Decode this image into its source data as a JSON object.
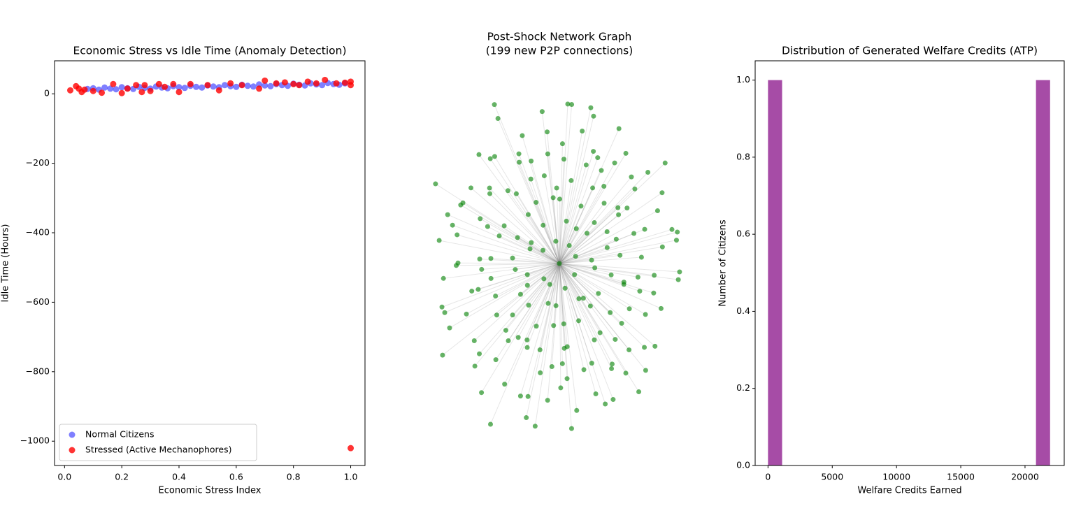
{
  "chart_data": [
    {
      "type": "scatter",
      "title": "Economic Stress vs Idle Time (Anomaly Detection)",
      "xlabel": "Economic Stress Index",
      "ylabel": "Idle Time (Hours)",
      "xlim": [
        -0.035,
        1.05
      ],
      "ylim": [
        -1070,
        95
      ],
      "xticks": [
        {
          "value": 0,
          "label": "0.0"
        },
        0.2,
        0.4,
        0.6,
        0.8,
        {
          "value": 1,
          "label": "1.0"
        }
      ],
      "yticks": [
        {
          "value": 0,
          "label": "0"
        },
        {
          "value": -200,
          "label": "−200"
        },
        {
          "value": -400,
          "label": "−400"
        },
        {
          "value": -600,
          "label": "−600"
        },
        {
          "value": -800,
          "label": "−800"
        },
        {
          "value": -1000,
          "label": "−1000"
        }
      ],
      "legend": "lower left",
      "grid": false,
      "series": [
        {
          "name": "Normal Citizens",
          "color": "blue",
          "alpha": 0.5,
          "x": [
            0.08,
            0.1,
            0.12,
            0.14,
            0.16,
            0.18,
            0.2,
            0.22,
            0.24,
            0.26,
            0.28,
            0.3,
            0.32,
            0.34,
            0.36,
            0.38,
            0.4,
            0.42,
            0.44,
            0.46,
            0.48,
            0.5,
            0.52,
            0.54,
            0.56,
            0.58,
            0.6,
            0.62,
            0.64,
            0.66,
            0.68,
            0.7,
            0.72,
            0.74,
            0.76,
            0.78,
            0.8,
            0.82,
            0.84,
            0.86,
            0.88,
            0.9,
            0.92,
            0.94,
            0.96,
            0.98
          ],
          "values": [
            14,
            16,
            12,
            18,
            15,
            13,
            19,
            16,
            14,
            20,
            17,
            15,
            21,
            18,
            16,
            22,
            19,
            17,
            23,
            20,
            18,
            24,
            21,
            19,
            25,
            22,
            20,
            26,
            23,
            21,
            27,
            24,
            22,
            28,
            25,
            23,
            29,
            26,
            24,
            30,
            27,
            25,
            31,
            28,
            26,
            30
          ]
        },
        {
          "name": "Stressed (Active Mechanophores)",
          "color": "red",
          "alpha": 0.8,
          "x": [
            0.02,
            0.04,
            0.05,
            0.06,
            0.07,
            0.1,
            0.13,
            0.17,
            0.2,
            0.22,
            0.25,
            0.27,
            0.28,
            0.3,
            0.33,
            0.35,
            0.38,
            0.4,
            0.44,
            0.5,
            0.54,
            0.58,
            0.62,
            0.68,
            0.7,
            0.74,
            0.77,
            0.8,
            0.82,
            0.85,
            0.88,
            0.91,
            0.95,
            0.98,
            1.0,
            1.0,
            1.0
          ],
          "values": [
            10,
            22,
            15,
            5,
            12,
            8,
            3,
            28,
            2,
            15,
            25,
            5,
            25,
            8,
            28,
            20,
            28,
            5,
            28,
            25,
            10,
            30,
            25,
            15,
            38,
            30,
            33,
            28,
            25,
            35,
            30,
            40,
            30,
            32,
            25,
            35,
            -1020
          ]
        }
      ]
    },
    {
      "type": "network",
      "title": [
        "Post-Shock Network Graph",
        "(199 new P2P connections)"
      ],
      "node_color": "green",
      "node_alpha": 0.6,
      "edge_color": "gray",
      "edge_alpha": 0.2
    },
    {
      "type": "histogram",
      "title": "Distribution of Generated Welfare Credits (ATP)",
      "xlabel": "Welfare Credits Earned",
      "ylabel": "Number of Citizens",
      "xlim": [
        -1000,
        23050
      ],
      "ylim": [
        0,
        1.05
      ],
      "xticks": [
        0,
        5000,
        10000,
        15000,
        20000
      ],
      "yticks": [
        {
          "value": 0,
          "label": "0.0"
        },
        0.2,
        0.4,
        0.6,
        0.8,
        {
          "value": 1,
          "label": "1.0"
        }
      ],
      "color": "purple",
      "alpha": 0.7,
      "grid": false,
      "bins": [
        0,
        1097.5,
        2195,
        3292.5,
        4390,
        5487.5,
        6585,
        7682.5,
        8780,
        9877.5,
        10975,
        12072.5,
        13170,
        14267.5,
        15365,
        16462.5,
        17560,
        18657.5,
        19755,
        20852.5,
        21950
      ],
      "values": [
        1,
        0,
        0,
        0,
        0,
        0,
        0,
        0,
        0,
        0,
        0,
        0,
        0,
        0,
        0,
        0,
        0,
        0,
        0,
        1
      ]
    }
  ]
}
